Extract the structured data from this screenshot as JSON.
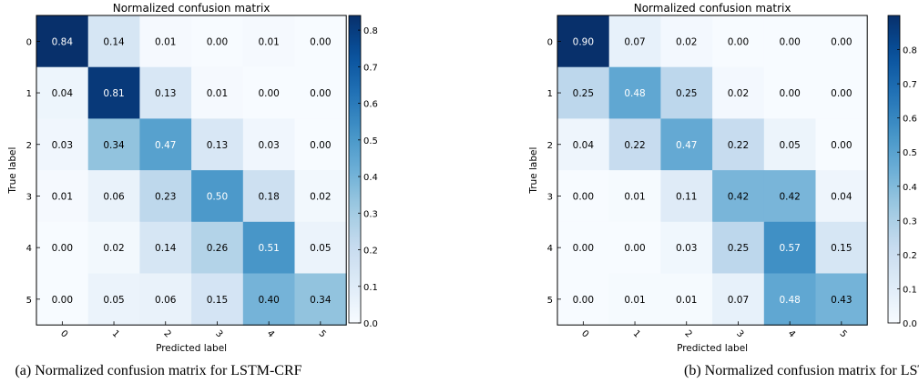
{
  "chart_data": [
    {
      "type": "heatmap",
      "title": "Normalized confusion matrix",
      "xlabel": "Predicted label",
      "ylabel": "True label",
      "x_categories": [
        "0",
        "1",
        "2",
        "3",
        "4",
        "5"
      ],
      "y_categories": [
        "0",
        "1",
        "2",
        "3",
        "4",
        "5"
      ],
      "values": [
        [
          0.84,
          0.14,
          0.01,
          0.0,
          0.01,
          0.0
        ],
        [
          0.04,
          0.81,
          0.13,
          0.01,
          0.0,
          0.0
        ],
        [
          0.03,
          0.34,
          0.47,
          0.13,
          0.03,
          0.0
        ],
        [
          0.01,
          0.06,
          0.23,
          0.5,
          0.18,
          0.02
        ],
        [
          0.0,
          0.02,
          0.14,
          0.26,
          0.51,
          0.05
        ],
        [
          0.0,
          0.05,
          0.06,
          0.15,
          0.4,
          0.34
        ]
      ],
      "cell_labels": [
        [
          "0.84",
          "0.14",
          "0.01",
          "0.00",
          "0.01",
          "0.00"
        ],
        [
          "0.04",
          "0.81",
          "0.13",
          "0.01",
          "0.00",
          "0.00"
        ],
        [
          "0.03",
          "0.34",
          "0.47",
          "0.13",
          "0.03",
          "0.00"
        ],
        [
          "0.01",
          "0.06",
          "0.23",
          "0.50",
          "0.18",
          "0.02"
        ],
        [
          "0.00",
          "0.02",
          "0.14",
          "0.26",
          "0.51",
          "0.05"
        ],
        [
          "0.00",
          "0.05",
          "0.06",
          "0.15",
          "0.40",
          "0.34"
        ]
      ],
      "colormap": "Blues",
      "color_range": [
        0.0,
        0.84
      ],
      "colorbar_ticks": [
        0.0,
        0.1,
        0.2,
        0.3,
        0.4,
        0.5,
        0.6,
        0.7,
        0.8
      ],
      "colorbar_tick_labels": [
        "0.0",
        "0.1",
        "0.2",
        "0.3",
        "0.4",
        "0.5",
        "0.6",
        "0.7",
        "0.8"
      ],
      "caption": "(a) Normalized confusion matrix for LSTM-CRF"
    },
    {
      "type": "heatmap",
      "title": "Normalized confusion matrix",
      "xlabel": "Predicted label",
      "ylabel": "True label",
      "x_categories": [
        "0",
        "1",
        "2",
        "3",
        "4",
        "5"
      ],
      "y_categories": [
        "0",
        "1",
        "2",
        "3",
        "4",
        "5"
      ],
      "values": [
        [
          0.9,
          0.07,
          0.02,
          0.0,
          0.0,
          0.0
        ],
        [
          0.25,
          0.48,
          0.25,
          0.02,
          0.0,
          0.0
        ],
        [
          0.04,
          0.22,
          0.47,
          0.22,
          0.05,
          0.0
        ],
        [
          0.0,
          0.01,
          0.11,
          0.42,
          0.42,
          0.04
        ],
        [
          0.0,
          0.0,
          0.03,
          0.25,
          0.57,
          0.15
        ],
        [
          0.0,
          0.01,
          0.01,
          0.07,
          0.48,
          0.43
        ]
      ],
      "cell_labels": [
        [
          "0.90",
          "0.07",
          "0.02",
          "0.00",
          "0.00",
          "0.00"
        ],
        [
          "0.25",
          "0.48",
          "0.25",
          "0.02",
          "0.00",
          "0.00"
        ],
        [
          "0.04",
          "0.22",
          "0.47",
          "0.22",
          "0.05",
          "0.00"
        ],
        [
          "0.00",
          "0.01",
          "0.11",
          "0.42",
          "0.42",
          "0.04"
        ],
        [
          "0.00",
          "0.00",
          "0.03",
          "0.25",
          "0.57",
          "0.15"
        ],
        [
          "0.00",
          "0.01",
          "0.01",
          "0.07",
          "0.48",
          "0.43"
        ]
      ],
      "colormap": "Blues",
      "color_range": [
        0.0,
        0.9
      ],
      "colorbar_ticks": [
        0.0,
        0.1,
        0.2,
        0.3,
        0.4,
        0.5,
        0.6,
        0.7,
        0.8
      ],
      "colorbar_tick_labels": [
        "0.0",
        "0.1",
        "0.2",
        "0.3",
        "0.4",
        "0.5",
        "0.6",
        "0.7",
        "0.8"
      ],
      "caption": "(b) Normalized confusion matrix for LSTM-SP"
    }
  ]
}
